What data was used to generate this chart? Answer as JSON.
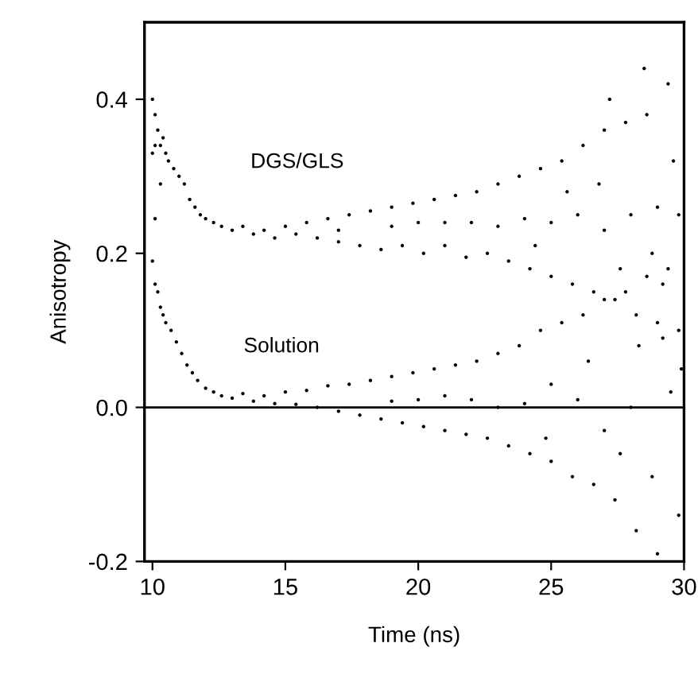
{
  "chart_data": {
    "type": "scatter",
    "xlabel": "Time (ns)",
    "ylabel": "Anisotropy",
    "xlim": [
      9.7,
      30
    ],
    "xticks": [
      10,
      15,
      20,
      25,
      30
    ],
    "ylim": [
      -0.2,
      0.5
    ],
    "yticks": [
      -0.2,
      {
        "value": 0,
        "label": "0.0"
      },
      0.2,
      0.4
    ],
    "marker": "circle",
    "grid": false,
    "legend": false,
    "ref_lines": [
      {
        "axis": "y",
        "value": 0,
        "color": "#000000",
        "line_style": "solid"
      }
    ],
    "series": [
      {
        "name": "DGS/GLS",
        "color": "#000000",
        "x": [
          10.0,
          10.0,
          10.1,
          10.1,
          10.1,
          10.2,
          10.3,
          10.3,
          10.4,
          10.5,
          10.6,
          10.8,
          11.0,
          11.2,
          11.4,
          11.6,
          11.8,
          12.0,
          12.3,
          12.6,
          13.0,
          13.4,
          13.8,
          14.2,
          14.6,
          15.0,
          15.4,
          15.8,
          16.2,
          16.6,
          17.0,
          17.4,
          17.8,
          18.2,
          18.6,
          19.0,
          19.4,
          19.8,
          20.2,
          20.6,
          21.0,
          21.4,
          21.8,
          22.2,
          22.6,
          23.0,
          23.4,
          23.8,
          24.2,
          24.6,
          25.0,
          25.4,
          25.8,
          26.2,
          26.6,
          27.0,
          27.4,
          27.8,
          28.2,
          28.6,
          29.0,
          29.4,
          29.8,
          20.0,
          22.0,
          24.0,
          26.0,
          28.0,
          29.0,
          29.8,
          27.0,
          25.0,
          23.0,
          21.0,
          19.0,
          17.0,
          28.5,
          27.2,
          29.6,
          26.8,
          28.8,
          27.6,
          29.2,
          25.6,
          24.4
        ],
        "values": [
          0.4,
          0.33,
          0.38,
          0.34,
          0.245,
          0.36,
          0.34,
          0.29,
          0.35,
          0.33,
          0.32,
          0.31,
          0.3,
          0.29,
          0.27,
          0.26,
          0.25,
          0.245,
          0.24,
          0.235,
          0.23,
          0.235,
          0.225,
          0.23,
          0.22,
          0.235,
          0.225,
          0.24,
          0.22,
          0.245,
          0.215,
          0.25,
          0.21,
          0.255,
          0.205,
          0.26,
          0.21,
          0.265,
          0.2,
          0.27,
          0.21,
          0.275,
          0.195,
          0.28,
          0.2,
          0.29,
          0.19,
          0.3,
          0.18,
          0.31,
          0.17,
          0.32,
          0.16,
          0.34,
          0.15,
          0.36,
          0.14,
          0.37,
          0.12,
          0.38,
          0.11,
          0.42,
          0.1,
          0.24,
          0.24,
          0.245,
          0.25,
          0.25,
          0.26,
          0.25,
          0.23,
          0.24,
          0.235,
          0.24,
          0.235,
          0.23,
          0.44,
          0.4,
          0.32,
          0.29,
          0.2,
          0.18,
          0.16,
          0.28,
          0.21
        ]
      },
      {
        "name": "Solution",
        "color": "#000000",
        "x": [
          10.0,
          10.1,
          10.2,
          10.3,
          10.4,
          10.5,
          10.7,
          10.9,
          11.1,
          11.3,
          11.5,
          11.7,
          12.0,
          12.3,
          12.6,
          13.0,
          13.4,
          13.8,
          14.2,
          14.6,
          15.0,
          15.4,
          15.8,
          16.2,
          16.6,
          17.0,
          17.4,
          17.8,
          18.2,
          18.6,
          19.0,
          19.4,
          19.8,
          20.2,
          20.6,
          21.0,
          21.4,
          21.8,
          22.2,
          22.6,
          23.0,
          23.4,
          23.8,
          24.2,
          24.6,
          25.0,
          25.4,
          25.8,
          26.2,
          26.6,
          27.0,
          27.4,
          27.8,
          28.2,
          28.6,
          29.0,
          29.4,
          29.8,
          20.0,
          22.0,
          24.0,
          26.0,
          28.0,
          29.5,
          27.0,
          25.0,
          23.0,
          21.0,
          19.0,
          28.3,
          27.6,
          29.2,
          26.4,
          24.8,
          28.8,
          29.9
        ],
        "values": [
          0.19,
          0.16,
          0.15,
          0.13,
          0.12,
          0.11,
          0.1,
          0.085,
          0.07,
          0.055,
          0.045,
          0.035,
          0.025,
          0.02,
          0.015,
          0.012,
          0.018,
          0.008,
          0.015,
          0.005,
          0.02,
          0.004,
          0.022,
          0.0,
          0.028,
          -0.005,
          0.03,
          -0.01,
          0.035,
          -0.015,
          0.04,
          -0.02,
          0.045,
          -0.025,
          0.05,
          -0.03,
          0.055,
          -0.035,
          0.06,
          -0.04,
          0.07,
          -0.05,
          0.08,
          -0.06,
          0.1,
          -0.07,
          0.11,
          -0.09,
          0.12,
          -0.1,
          0.14,
          -0.12,
          0.15,
          -0.16,
          0.17,
          -0.19,
          0.18,
          -0.14,
          0.01,
          0.01,
          0.005,
          0.01,
          0.0,
          0.02,
          -0.03,
          0.03,
          0.0,
          0.015,
          0.008,
          0.08,
          -0.06,
          0.09,
          0.06,
          -0.04,
          -0.09,
          0.05
        ]
      }
    ]
  }
}
